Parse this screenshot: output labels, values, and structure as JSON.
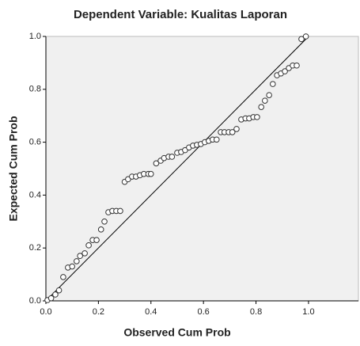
{
  "chart_data": {
    "type": "scatter",
    "title": "Dependent Variable: Kualitas Laporan",
    "x_label": "Observed Cum Prob",
    "y_label": "Expected Cum Prob",
    "x": [
      0.006,
      0.02,
      0.036,
      0.05,
      0.066,
      0.084,
      0.1,
      0.117,
      0.13,
      0.148,
      0.163,
      0.178,
      0.193,
      0.21,
      0.223,
      0.238,
      0.253,
      0.268,
      0.283,
      0.3,
      0.313,
      0.328,
      0.343,
      0.358,
      0.373,
      0.39,
      0.4,
      0.42,
      0.437,
      0.45,
      0.467,
      0.48,
      0.5,
      0.515,
      0.53,
      0.545,
      0.56,
      0.575,
      0.59,
      0.605,
      0.62,
      0.635,
      0.65,
      0.666,
      0.68,
      0.696,
      0.71,
      0.726,
      0.744,
      0.76,
      0.774,
      0.79,
      0.804,
      0.82,
      0.834,
      0.85,
      0.864,
      0.88,
      0.895,
      0.91,
      0.925,
      0.94,
      0.955,
      0.973,
      0.99
    ],
    "values": [
      0.003,
      0.01,
      0.024,
      0.04,
      0.09,
      0.126,
      0.13,
      0.15,
      0.17,
      0.18,
      0.21,
      0.23,
      0.23,
      0.27,
      0.3,
      0.335,
      0.34,
      0.34,
      0.34,
      0.45,
      0.46,
      0.47,
      0.47,
      0.475,
      0.48,
      0.48,
      0.48,
      0.52,
      0.53,
      0.54,
      0.545,
      0.545,
      0.56,
      0.563,
      0.57,
      0.58,
      0.587,
      0.59,
      0.593,
      0.6,
      0.605,
      0.61,
      0.61,
      0.638,
      0.638,
      0.638,
      0.638,
      0.65,
      0.686,
      0.69,
      0.69,
      0.695,
      0.695,
      0.733,
      0.757,
      0.778,
      0.82,
      0.853,
      0.86,
      0.868,
      0.88,
      0.89,
      0.89,
      0.99,
      1.0
    ],
    "xlim": [
      0,
      1.19
    ],
    "ylim": [
      0,
      1
    ],
    "xticks": [
      {
        "value": 0,
        "label": "0.0"
      },
      {
        "value": 0.2,
        "label": "0.2"
      },
      {
        "value": 0.4,
        "label": "0.4"
      },
      {
        "value": 0.6,
        "label": "0.6"
      },
      {
        "value": 0.8,
        "label": "0.8"
      },
      {
        "value": 1,
        "label": "1.0"
      }
    ],
    "yticks": [
      {
        "value": 0,
        "label": "0.0"
      },
      {
        "value": 0.2,
        "label": "0.2"
      },
      {
        "value": 0.4,
        "label": "0.4"
      },
      {
        "value": 0.6,
        "label": "0.6"
      },
      {
        "value": 0.8,
        "label": "0.8"
      },
      {
        "value": 1,
        "label": "1.0"
      }
    ],
    "background": "#f0f0f0",
    "marker_stroke": "#333333",
    "marker_fill": "#ffffff"
  }
}
